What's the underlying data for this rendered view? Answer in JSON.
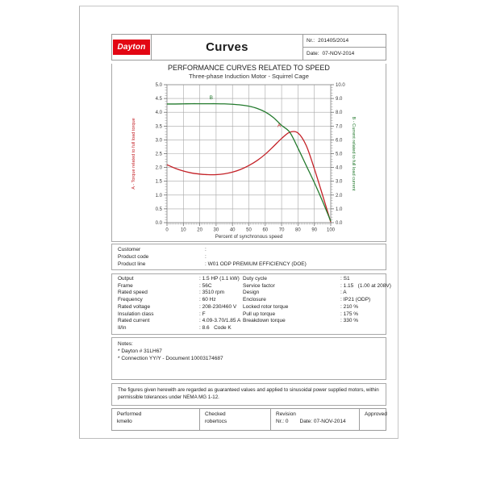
{
  "misc": {
    "separator": ":"
  },
  "header": {
    "brand": "Dayton",
    "doc_title": "Curves",
    "nr_label": "Nr.:",
    "nr_value": "201405/2014",
    "date_label": "Date:",
    "date_value": "07-NOV-2014"
  },
  "section": {
    "title": "PERFORMANCE CURVES RELATED TO SPEED",
    "subtitle": "Three-phase Induction Motor - Squirrel Cage"
  },
  "chart_data": {
    "type": "line",
    "title": "PERFORMANCE CURVES RELATED TO SPEED",
    "subtitle": "Three-phase Induction Motor - Squirrel Cage",
    "xlabel": "Percent of synchronous speed",
    "ylabel_left": "A - Torque related to full load torque",
    "ylabel_right": "B - Current related to full load current",
    "xlim": [
      0,
      100
    ],
    "ylim_left": [
      0,
      5
    ],
    "ylim_right": [
      0,
      10
    ],
    "x_ticks": [
      0,
      10,
      20,
      30,
      40,
      50,
      60,
      70,
      80,
      90,
      100
    ],
    "y_ticks_left": [
      0,
      0.5,
      1,
      1.5,
      2,
      2.5,
      3,
      3.5,
      4,
      4.5,
      5
    ],
    "y_ticks_right": [
      0,
      1,
      2,
      3,
      4,
      5,
      6,
      7,
      8,
      9,
      10
    ],
    "grid": true,
    "colors": {
      "torque": "#c42127",
      "current": "#237a2d",
      "grid": "#a6a6a6",
      "frame": "#8c8c8c",
      "tick_text": "#3a3a3a"
    },
    "series": [
      {
        "name": "A",
        "semantic": "torque-vs-speed",
        "axis": "left",
        "color": "#c42127",
        "label_at": [
          68.5,
          3.47
        ],
        "x": [
          0,
          5,
          10,
          15,
          20,
          25,
          30,
          35,
          40,
          45,
          50,
          55,
          60,
          65,
          70,
          75,
          80,
          85,
          90,
          95,
          100
        ],
        "y": [
          2.1,
          1.97,
          1.87,
          1.8,
          1.76,
          1.74,
          1.74,
          1.77,
          1.83,
          1.93,
          2.07,
          2.25,
          2.48,
          2.76,
          3.05,
          3.28,
          3.25,
          2.8,
          1.95,
          1.0,
          0.02
        ]
      },
      {
        "name": "B",
        "semantic": "current-vs-speed",
        "axis": "right",
        "color": "#237a2d",
        "label_at": [
          27,
          8.95
        ],
        "x": [
          0,
          5,
          10,
          15,
          20,
          25,
          30,
          35,
          40,
          45,
          50,
          55,
          60,
          65,
          70,
          75,
          80,
          85,
          90,
          95,
          100
        ],
        "y": [
          8.6,
          8.6,
          8.61,
          8.62,
          8.62,
          8.62,
          8.62,
          8.61,
          8.58,
          8.53,
          8.44,
          8.28,
          8.02,
          7.62,
          7.05,
          6.55,
          5.4,
          4.15,
          2.9,
          1.55,
          0.1
        ]
      }
    ]
  },
  "customer": {
    "rows": [
      {
        "label": "Customer",
        "value": ""
      },
      {
        "label": "Product code",
        "value": ""
      },
      {
        "label": "Product line",
        "value": "W01 ODP PREMIUM EFFICIENCY (DOE)"
      }
    ]
  },
  "specs": {
    "left": [
      {
        "label": "Output",
        "value": "1.5 HP (1.1 kW)"
      },
      {
        "label": "Frame",
        "value": "56C"
      },
      {
        "label": "Rated speed",
        "value": "3510 rpm"
      },
      {
        "label": "Frequency",
        "value": "60 Hz"
      },
      {
        "label": "Rated voltage",
        "value": "208-230/460 V"
      },
      {
        "label": "Insulation class",
        "value": "F"
      },
      {
        "label": "Rated current",
        "value": "4.09-3.70/1.85 A"
      },
      {
        "label": "Il/In",
        "value": "8.6   Code K"
      }
    ],
    "right": [
      {
        "label": "Duty cycle",
        "value": "S1"
      },
      {
        "label": "Service factor",
        "value": "1.15   (1.00 at 208V)"
      },
      {
        "label": "Design",
        "value": "A"
      },
      {
        "label": "Enclosure",
        "value": "IP21 (ODP)"
      },
      {
        "label": "Locked rotor torque",
        "value": "210 %"
      },
      {
        "label": "Pull up torque",
        "value": "175 %"
      },
      {
        "label": "Breakdown torque",
        "value": "330 %"
      }
    ]
  },
  "notes": {
    "title": "Notes:",
    "lines": [
      "* Dayton # 31LH67",
      "* Connection YY/Y - Document 10003174687"
    ]
  },
  "disclaimer": "The figures given herewith are regarded as guaranteed values and applied to sinusoidal  power supplied motors, within permissible tolerances under NEMA MG 1-12.",
  "footer": {
    "performed_label": "Performed",
    "performed_value": "kmello",
    "checked_label": "Checked",
    "checked_value": "robertocs",
    "revision_label": "Revision",
    "revision_nr": "Nr.: 0",
    "revision_date": "Date: 07-NOV-2014",
    "approved_label": "Approved",
    "approved_value": ""
  }
}
